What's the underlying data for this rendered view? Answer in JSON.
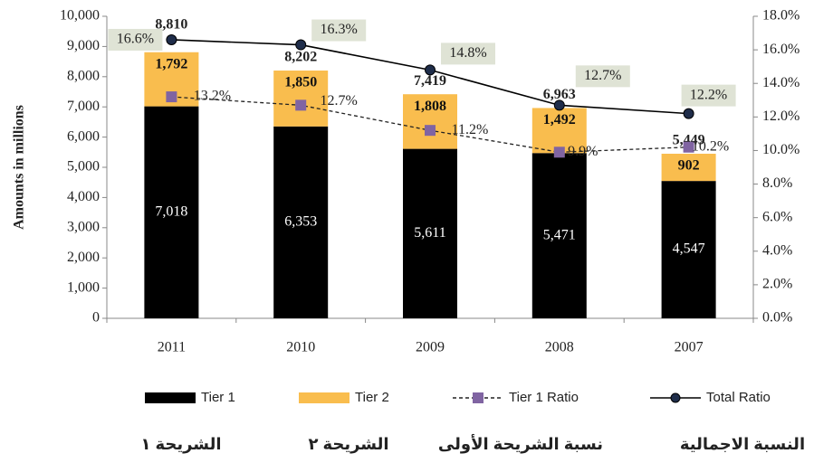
{
  "chart_data": {
    "type": "bar",
    "ylabel": "Amounts in millions",
    "categories": [
      "2011",
      "2010",
      "2009",
      "2008",
      "2007"
    ],
    "series": [
      {
        "name": "Tier 1",
        "color": "#000000",
        "values": [
          7018,
          6353,
          5611,
          5471,
          4547
        ],
        "value_labels": [
          "7,018",
          "6,353",
          "5,611",
          "5,471",
          "4,547"
        ]
      },
      {
        "name": "Tier 2",
        "color": "#f9bd4e",
        "values": [
          1792,
          1850,
          1808,
          1492,
          902
        ],
        "value_labels": [
          "1,792",
          "1,850",
          "1,808",
          "1,492",
          "902"
        ]
      },
      {
        "name": "Tier 1 Ratio",
        "type": "line",
        "axis": "y2",
        "color": "#8064a2",
        "dashed": true,
        "values": [
          13.2,
          12.7,
          11.2,
          9.9,
          10.2
        ],
        "value_labels": [
          "13.2%",
          "12.7%",
          "11.2%",
          "9.9%",
          "10.2%"
        ]
      },
      {
        "name": "Total Ratio",
        "type": "line",
        "axis": "y2",
        "color": "#000000",
        "marker_color": "#1f2d4a",
        "values": [
          16.6,
          16.3,
          14.8,
          12.7,
          12.2
        ],
        "value_labels": [
          "16.6%",
          "16.3%",
          "14.8%",
          "12.7%",
          "12.2%"
        ]
      }
    ],
    "totals": {
      "values": [
        8810,
        8202,
        7419,
        6963,
        5449
      ],
      "value_labels": [
        "8,810",
        "8,202",
        "7,419",
        "6,963",
        "5,449"
      ]
    },
    "ylim": [
      0,
      10000
    ],
    "yticks": [
      0,
      {
        "value": 1000,
        "label": "1,000"
      },
      {
        "value": 2000,
        "label": "2,000"
      },
      {
        "value": 3000,
        "label": "3,000"
      },
      {
        "value": 4000,
        "label": "4,000"
      },
      {
        "value": 5000,
        "label": "5,000"
      },
      {
        "value": 6000,
        "label": "6,000"
      },
      {
        "value": 7000,
        "label": "7,000"
      },
      {
        "value": 8000,
        "label": "8,000"
      },
      {
        "value": 9000,
        "label": "9,000"
      },
      {
        "value": 10000,
        "label": "10,000"
      }
    ],
    "y2lim": [
      0,
      18
    ],
    "y2ticks": [
      {
        "value": 0,
        "label": "0.0%"
      },
      {
        "value": 2,
        "label": "2.0%"
      },
      {
        "value": 4,
        "label": "4.0%"
      },
      {
        "value": 6,
        "label": "6.0%"
      },
      {
        "value": 8,
        "label": "8.0%"
      },
      {
        "value": 10,
        "label": "10.0%"
      },
      {
        "value": 12,
        "label": "12.0%"
      },
      {
        "value": 14,
        "label": "14.0%"
      },
      {
        "value": 16,
        "label": "16.0%"
      },
      {
        "value": 18,
        "label": "18.0%"
      }
    ],
    "legend": "bottom",
    "arabic_labels": [
      "الشريحة ١",
      "الشريحة ٢",
      "نسبة الشريحة الأولى",
      "النسبة الاجمالية"
    ]
  }
}
